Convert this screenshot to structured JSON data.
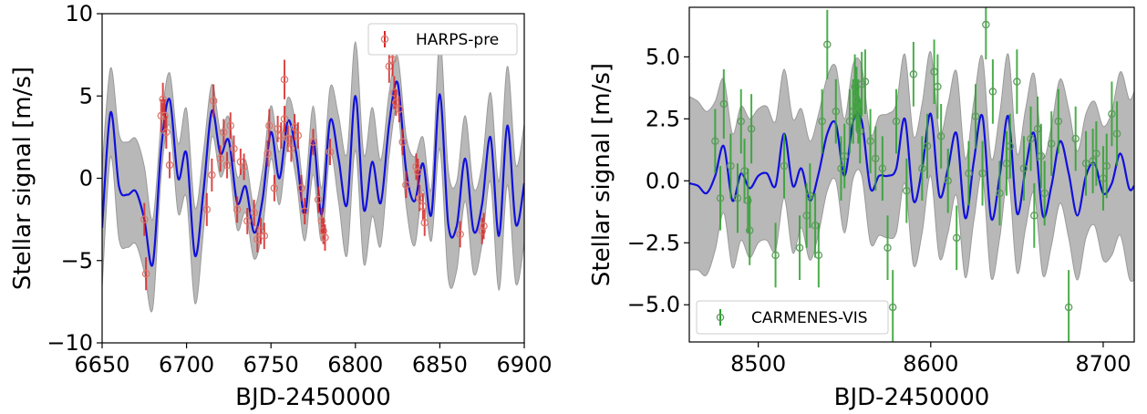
{
  "chart_data": [
    {
      "type": "line",
      "xlabel": "BJD-2450000",
      "ylabel": "Stellar signal [m/s]",
      "xlim": [
        6650,
        6900
      ],
      "ylim": [
        -10,
        10
      ],
      "xticks": [
        6650,
        6700,
        6750,
        6800,
        6850,
        6900
      ],
      "yticks": [
        -10,
        -5,
        0,
        5,
        10
      ],
      "xtick_labels": [
        "6650",
        "6700",
        "6750",
        "6800",
        "6850",
        "6900"
      ],
      "ytick_labels": [
        "−10",
        "−5",
        "0",
        "5",
        "10"
      ],
      "legend": {
        "label": "HARPS-pre",
        "loc": "upper right"
      },
      "colors": {
        "model": "#1010dd",
        "band": "#b8b8b8",
        "band_edge": "#9a9a9a",
        "points": "#d62728",
        "points_face": "#d9796f"
      },
      "model": {
        "x": [
          6650,
          6655,
          6660,
          6665,
          6670,
          6675,
          6680,
          6685,
          6690,
          6695,
          6700,
          6705,
          6710,
          6715,
          6720,
          6725,
          6730,
          6735,
          6740,
          6745,
          6750,
          6755,
          6760,
          6765,
          6770,
          6775,
          6780,
          6785,
          6790,
          6795,
          6800,
          6805,
          6810,
          6815,
          6820,
          6825,
          6830,
          6835,
          6840,
          6845,
          6850,
          6855,
          6860,
          6865,
          6870,
          6875,
          6880,
          6885,
          6890,
          6895,
          6900
        ],
        "y": [
          -3,
          4,
          -0.5,
          -1,
          -0.8,
          -2.5,
          -5.2,
          1.8,
          4.8,
          0,
          1.5,
          -4.7,
          -0.8,
          4.1,
          1.5,
          2.3,
          -1.5,
          -0.5,
          -3.3,
          -1.3,
          2.8,
          0,
          3.5,
          1.5,
          -2.2,
          2.3,
          -2.2,
          3.5,
          1.2,
          -1.6,
          5,
          -1.9,
          1,
          -1.5,
          3.3,
          5.8,
          0.5,
          -1.4,
          0.9,
          -2.2,
          5.1,
          -2.8,
          -2.9,
          1.2,
          -3.2,
          -1.6,
          2.5,
          -3.5,
          3.2,
          -2.8,
          -0.3
        ],
        "sigma": [
          3.6,
          2.7,
          3.2,
          3.2,
          3.2,
          3.2,
          2.7,
          1.6,
          1.6,
          2.1,
          2.7,
          2.9,
          2.4,
          1.6,
          1.4,
          1.4,
          1.6,
          1.6,
          1.6,
          1.8,
          1.6,
          1.6,
          1.4,
          1.6,
          1.6,
          2.1,
          1.6,
          2,
          2.6,
          3.1,
          3.3,
          3.3,
          3.3,
          2.6,
          1.9,
          1.6,
          2.1,
          2.7,
          1.6,
          1.6,
          3.3,
          3.3,
          2.7,
          2.6,
          2.6,
          2.4,
          2.7,
          3.3,
          3.6,
          3.6,
          3.6
        ]
      },
      "observations": {
        "x": [
          6675,
          6676,
          6685,
          6686,
          6687,
          6688,
          6690,
          6712,
          6715,
          6716,
          6720,
          6722,
          6724,
          6726,
          6728,
          6730,
          6732,
          6734,
          6736,
          6740,
          6742,
          6744,
          6746,
          6748,
          6749,
          6752,
          6754,
          6756,
          6758,
          6758,
          6760,
          6762,
          6764,
          6766,
          6768,
          6770,
          6775,
          6778,
          6780,
          6781,
          6782,
          6785,
          6820,
          6822,
          6823,
          6824,
          6826,
          6828,
          6830,
          6836,
          6837,
          6838,
          6840,
          6841,
          6862,
          6875,
          6876
        ],
        "y": [
          -2.5,
          -5.8,
          3.8,
          4.8,
          3.8,
          2.8,
          0.8,
          -1.9,
          0.2,
          4.7,
          1.2,
          2.8,
          0.8,
          3.2,
          1.8,
          -1.9,
          1,
          0.7,
          -2.6,
          -2.1,
          -3.7,
          -3.2,
          -3.5,
          1.5,
          3.2,
          -0.6,
          3,
          2.6,
          3.6,
          6,
          2.4,
          1.8,
          3.1,
          2.6,
          -0.6,
          -2,
          2.2,
          -1.3,
          -2.6,
          -3.2,
          -3.6,
          1.6,
          6.8,
          7.2,
          5.2,
          4.6,
          4.2,
          2.2,
          -0.4,
          0.7,
          0.4,
          -1.2,
          -1.7,
          -2.7,
          -3.4,
          -3.2,
          -2.9
        ],
        "err": [
          1,
          1,
          1,
          1,
          1,
          1,
          0.8,
          1,
          1,
          1,
          0.8,
          0.8,
          0.8,
          0.8,
          0.8,
          0.8,
          0.8,
          0.8,
          0.8,
          0.8,
          0.8,
          0.8,
          0.8,
          0.8,
          1,
          0.8,
          0.8,
          0.8,
          0.8,
          1.2,
          0.8,
          0.8,
          0.8,
          0.8,
          0.8,
          0.8,
          0.8,
          0.8,
          0.8,
          0.8,
          0.8,
          0.8,
          1,
          1,
          1,
          0.8,
          0.8,
          0.8,
          0.8,
          0.8,
          0.8,
          0.8,
          0.8,
          0.8,
          0.8,
          0.8,
          0.8
        ]
      }
    },
    {
      "type": "line",
      "xlabel": "BJD-2450000",
      "ylabel": "Stellar signal [m/s]",
      "xlim": [
        8460,
        8718
      ],
      "ylim": [
        -6.5,
        7.0
      ],
      "xticks": [
        8500,
        8600,
        8700
      ],
      "yticks": [
        -5.0,
        -2.5,
        0.0,
        2.5,
        5.0
      ],
      "xtick_labels": [
        "8500",
        "8600",
        "8700"
      ],
      "ytick_labels": [
        "−5.0",
        "−2.5",
        "0.0",
        "2.5",
        "5.0"
      ],
      "legend": {
        "label": "CARMENES-VIS",
        "loc": "lower left"
      },
      "colors": {
        "model": "#1010dd",
        "band": "#b8b8b8",
        "band_edge": "#9a9a9a",
        "points": "#2ca02c",
        "points_face": "#5f9a5f"
      },
      "model": {
        "x": [
          8460,
          8465,
          8470,
          8475,
          8480,
          8485,
          8490,
          8495,
          8500,
          8505,
          8510,
          8515,
          8520,
          8525,
          8530,
          8535,
          8540,
          8545,
          8550,
          8555,
          8560,
          8565,
          8570,
          8575,
          8580,
          8585,
          8590,
          8595,
          8600,
          8605,
          8610,
          8615,
          8620,
          8625,
          8630,
          8635,
          8640,
          8645,
          8650,
          8655,
          8660,
          8665,
          8670,
          8675,
          8680,
          8685,
          8690,
          8695,
          8700,
          8705,
          8710,
          8715,
          8718
        ],
        "y": [
          -0.1,
          -0.2,
          -0.5,
          0.2,
          1.4,
          -0.8,
          0.3,
          -0.3,
          0.2,
          0.3,
          -0.2,
          1.9,
          -0.2,
          0.5,
          -0.8,
          0.3,
          1.9,
          2.3,
          0.2,
          2.4,
          2.4,
          -0.3,
          0.2,
          0.2,
          0.5,
          2.5,
          -0.8,
          0.5,
          2.7,
          -0.6,
          0.5,
          1.9,
          -1.5,
          0.8,
          2.6,
          -1.5,
          0.2,
          2.6,
          -1.3,
          0.5,
          1.9,
          -1.4,
          -0.2,
          1.6,
          0.3,
          -1.4,
          0.2,
          0.7,
          -0.5,
          -0.1,
          1.1,
          -0.3,
          -0.2
        ],
        "sigma": [
          3.5,
          3.4,
          3.3,
          3.0,
          2.7,
          2.7,
          2.7,
          2.8,
          2.7,
          2.7,
          2.6,
          2.6,
          2.7,
          2.4,
          2.4,
          2.4,
          2.3,
          2.3,
          2.3,
          2.3,
          2.2,
          2.2,
          2.4,
          2.5,
          2.6,
          2.6,
          2.6,
          2.6,
          2.5,
          2.5,
          2.6,
          2.5,
          2.4,
          2.4,
          2.4,
          2.4,
          2.5,
          2.5,
          2.4,
          2.4,
          2.4,
          2.4,
          2.4,
          2.5,
          2.6,
          2.6,
          2.5,
          2.5,
          2.7,
          2.9,
          3.3,
          3.6,
          3.8
        ]
      },
      "observations": {
        "x": [
          8475,
          8478,
          8480,
          8484,
          8488,
          8490,
          8492,
          8494,
          8495,
          8496,
          8510,
          8515,
          8524,
          8528,
          8530,
          8533,
          8535,
          8537,
          8540,
          8545,
          8548,
          8550,
          8553,
          8555,
          8556,
          8557,
          8558,
          8559,
          8560,
          8562,
          8565,
          8568,
          8572,
          8575,
          8578,
          8580,
          8586,
          8590,
          8595,
          8598,
          8602,
          8604,
          8606,
          8610,
          8615,
          8622,
          8626,
          8630,
          8632,
          8636,
          8640,
          8644,
          8646,
          8650,
          8654,
          8658,
          8660,
          8662,
          8664,
          8666,
          8670,
          8674,
          8680,
          8684,
          8690,
          8694,
          8696,
          8700,
          8702,
          8705,
          8708
        ],
        "y": [
          1.6,
          -0.7,
          3.1,
          0.6,
          -0.7,
          2.4,
          0.4,
          -0.8,
          -2.0,
          2.1,
          -3.0,
          0.6,
          -2.7,
          -1.4,
          -0.6,
          -1.8,
          -3.0,
          2.4,
          5.5,
          2.8,
          0.5,
          1.0,
          2.4,
          2.8,
          3.8,
          3.3,
          2.8,
          2.0,
          3.9,
          4.0,
          1.6,
          0.9,
          0.5,
          -2.7,
          -5.1,
          2.4,
          -0.4,
          4.3,
          0.5,
          1.4,
          4.4,
          3.8,
          1.8,
          0.0,
          -2.3,
          0.3,
          2.6,
          0.3,
          6.3,
          3.6,
          -0.5,
          0.7,
          1.4,
          4.0,
          0.5,
          1.7,
          -1.4,
          2.1,
          1.0,
          -0.5,
          1.5,
          2.4,
          -5.1,
          1.7,
          0.7,
          0.8,
          1.1,
          0.1,
          0.6,
          2.7,
          1.9
        ],
        "err": [
          1.3,
          1.3,
          1.4,
          1.3,
          1.4,
          1.3,
          1.3,
          1.3,
          1.4,
          1.4,
          1.3,
          1.3,
          1.3,
          1.3,
          1.3,
          1.3,
          1.3,
          1.3,
          1.4,
          1.3,
          1.3,
          1.3,
          1.3,
          1.3,
          1.3,
          1.3,
          1.3,
          1.3,
          1.3,
          1.3,
          1.3,
          1.3,
          1.3,
          1.3,
          1.5,
          1.3,
          1.3,
          1.3,
          1.3,
          1.3,
          1.3,
          1.3,
          1.3,
          1.3,
          1.3,
          1.3,
          1.3,
          1.3,
          1.4,
          1.3,
          1.3,
          1.3,
          1.3,
          1.3,
          1.3,
          1.3,
          1.3,
          1.3,
          1.3,
          1.3,
          1.3,
          1.3,
          1.5,
          1.3,
          1.3,
          1.3,
          1.3,
          1.3,
          1.3,
          1.3,
          1.3
        ]
      }
    }
  ]
}
